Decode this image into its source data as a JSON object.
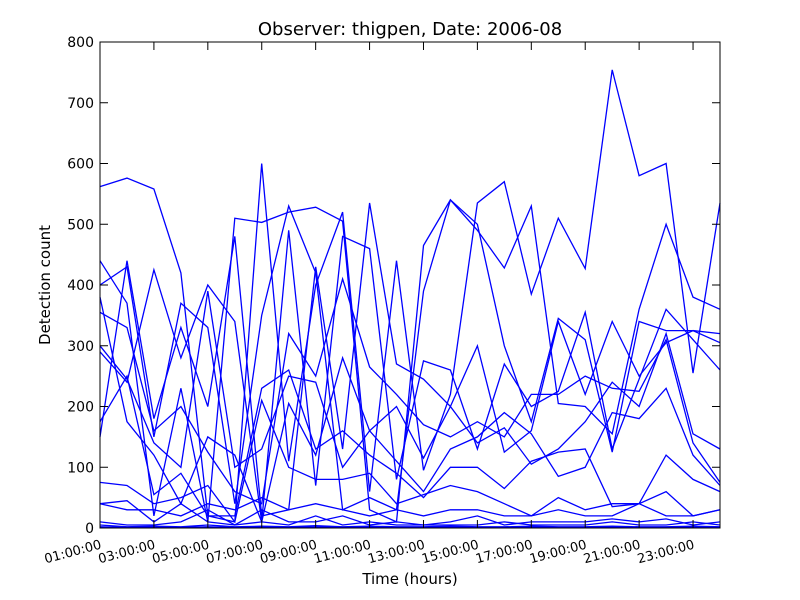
{
  "chart_data": {
    "type": "line",
    "title": "Observer: thigpen, Date: 2006-08",
    "xlabel": "Time (hours)",
    "ylabel": "Detection count",
    "ylim": [
      0,
      800
    ],
    "yticks": [
      0,
      100,
      200,
      300,
      400,
      500,
      600,
      700,
      800
    ],
    "xlim": [
      1,
      24
    ],
    "xticks": [
      1,
      3,
      5,
      7,
      9,
      11,
      13,
      15,
      17,
      19,
      21,
      23
    ],
    "xtick_labels": [
      "01:00:00",
      "03:00:00",
      "05:00:00",
      "07:00:00",
      "09:00:00",
      "11:00:00",
      "13:00:00",
      "15:00:00",
      "17:00:00",
      "19:00:00",
      "21:00:00",
      "23:00:00"
    ],
    "grid": false,
    "line_color": "#0000ff",
    "x": [
      1,
      2,
      3,
      4,
      5,
      6,
      7,
      8,
      9,
      10,
      11,
      12,
      13,
      14,
      15,
      16,
      17,
      18,
      19,
      20,
      21,
      22,
      23,
      24
    ],
    "series": [
      {
        "values": [
          562,
          576,
          558,
          420,
          20,
          10,
          600,
          110,
          400,
          520,
          60,
          440,
          95,
          220,
          535,
          570,
          385,
          510,
          427,
          754,
          580,
          600,
          255,
          535
        ]
      },
      {
        "values": [
          440,
          370,
          20,
          230,
          10,
          510,
          503,
          520,
          528,
          505,
          30,
          10,
          465,
          540,
          490,
          428,
          530,
          205,
          200,
          155,
          360,
          500,
          380,
          360
        ]
      },
      {
        "values": [
          400,
          430,
          150,
          370,
          330,
          40,
          350,
          530,
          420,
          30,
          50,
          30,
          390,
          540,
          500,
          300,
          175,
          345,
          310,
          125,
          340,
          325,
          325,
          305
        ]
      },
      {
        "values": [
          290,
          240,
          425,
          280,
          400,
          340,
          10,
          490,
          70,
          480,
          460,
          80,
          275,
          260,
          130,
          270,
          200,
          225,
          355,
          130,
          245,
          360,
          310,
          260
        ]
      },
      {
        "values": [
          150,
          440,
          180,
          330,
          200,
          480,
          20,
          30,
          430,
          130,
          535,
          270,
          245,
          200,
          300,
          125,
          160,
          340,
          220,
          340,
          250,
          305,
          325,
          320
        ]
      },
      {
        "values": [
          355,
          330,
          160,
          200,
          125,
          60,
          40,
          320,
          250,
          410,
          265,
          220,
          170,
          150,
          175,
          150,
          220,
          220,
          250,
          230,
          225,
          310,
          140,
          75
        ]
      },
      {
        "values": [
          300,
          245,
          140,
          100,
          390,
          100,
          130,
          250,
          240,
          100,
          160,
          200,
          115,
          200,
          140,
          165,
          105,
          130,
          175,
          240,
          200,
          320,
          155,
          130
        ]
      },
      {
        "values": [
          380,
          175,
          120,
          40,
          150,
          120,
          10,
          205,
          120,
          280,
          160,
          110,
          60,
          130,
          150,
          190,
          155,
          85,
          100,
          190,
          180,
          230,
          120,
          70
        ]
      },
      {
        "values": [
          175,
          250,
          55,
          90,
          20,
          20,
          230,
          260,
          130,
          160,
          120,
          90,
          50,
          100,
          100,
          65,
          110,
          125,
          130,
          35,
          40,
          120,
          80,
          60
        ]
      },
      {
        "values": [
          75,
          70,
          40,
          50,
          70,
          10,
          210,
          100,
          80,
          80,
          90,
          40,
          55,
          70,
          60,
          40,
          20,
          50,
          30,
          40,
          40,
          60,
          20,
          30
        ]
      },
      {
        "values": [
          40,
          30,
          30,
          20,
          40,
          30,
          50,
          30,
          40,
          30,
          20,
          30,
          20,
          30,
          30,
          20,
          20,
          30,
          20,
          20,
          40,
          20,
          20,
          30
        ]
      },
      {
        "values": [
          40,
          45,
          10,
          40,
          10,
          5,
          30,
          10,
          10,
          20,
          5,
          10,
          5,
          10,
          20,
          5,
          10,
          10,
          10,
          15,
          10,
          15,
          5,
          10
        ]
      },
      {
        "values": [
          10,
          5,
          5,
          10,
          30,
          5,
          10,
          5,
          20,
          5,
          10,
          5,
          5,
          5,
          5,
          10,
          5,
          5,
          5,
          10,
          5,
          5,
          10,
          5
        ]
      },
      {
        "values": [
          5,
          2,
          3,
          2,
          5,
          2,
          3,
          2,
          4,
          2,
          3,
          2,
          2,
          3,
          2,
          2,
          3,
          2,
          2,
          3,
          2,
          2,
          3,
          2
        ]
      },
      {
        "values": [
          2,
          1,
          1,
          1,
          2,
          1,
          1,
          1,
          2,
          1,
          1,
          1,
          1,
          1,
          1,
          1,
          1,
          1,
          1,
          1,
          1,
          1,
          1,
          1
        ]
      }
    ]
  }
}
